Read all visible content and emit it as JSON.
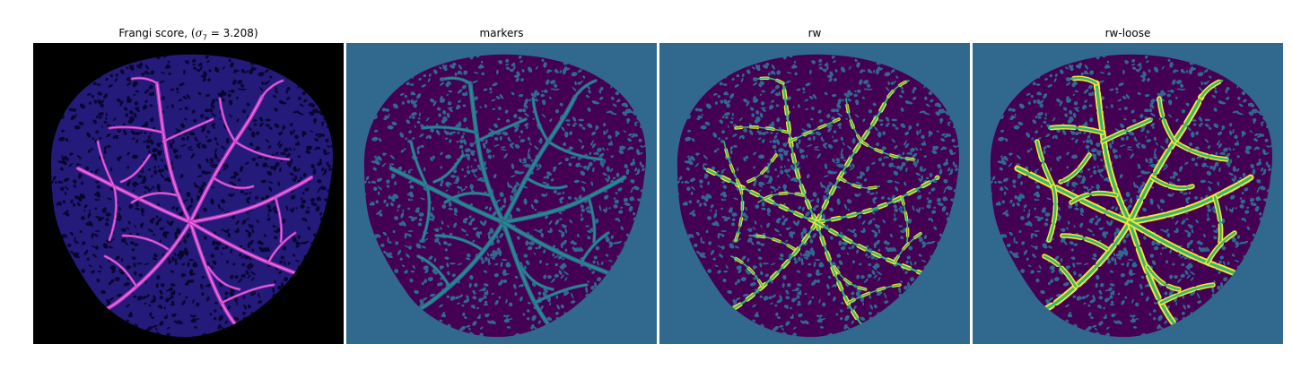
{
  "panels": [
    {
      "id": "frangi",
      "title_prefix": "Frangi score, (",
      "title_symbol": "σ",
      "title_subscript": "7",
      "title_suffix": " = 3.208)",
      "colormap": "magma",
      "colors": {
        "background": "#000000",
        "tissue": "#231a7a",
        "holes": "#0a0530",
        "vessel": "#c23bc4",
        "vessel_hot": "#f47ae8"
      }
    },
    {
      "id": "markers",
      "title": "markers",
      "colormap": "viridis",
      "colors": {
        "background": "#31688e",
        "tissue": "#440154",
        "holes": "#31688e",
        "vessel": "#21918c",
        "vessel_edge": "#2db27d"
      }
    },
    {
      "id": "rw",
      "title": "rw",
      "colormap": "viridis",
      "colors": {
        "background": "#31688e",
        "tissue": "#440154",
        "holes": "#31688e",
        "vessel": "#35b779",
        "vessel_edge": "#fde725"
      }
    },
    {
      "id": "rw-loose",
      "title": "rw-loose",
      "colormap": "viridis",
      "colors": {
        "background": "#31688e",
        "tissue": "#440154",
        "holes": "#31688e",
        "vessel": "#35b779",
        "vessel_edge": "#fde725"
      }
    }
  ]
}
